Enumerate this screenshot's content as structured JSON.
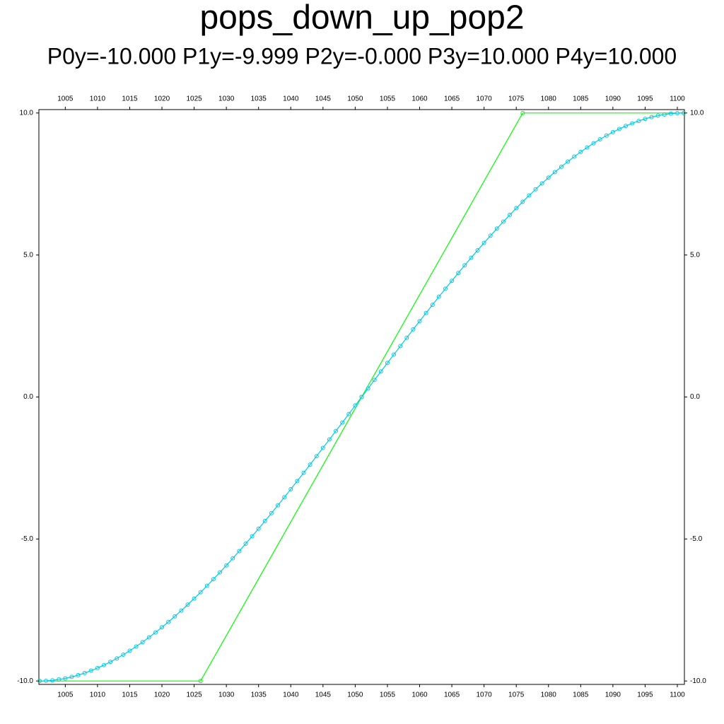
{
  "chart_data": {
    "type": "line",
    "title": "pops_down_up_pop2",
    "subtitle": "P0y=-10.000 P1y=-9.999 P2y=-0.000 P3y=10.000 P4y=10.000",
    "xlim": [
      1000.9,
      1101.1
    ],
    "ylim": [
      -10.12,
      10.12
    ],
    "xticks": [
      1005,
      1010,
      1015,
      1020,
      1025,
      1030,
      1035,
      1040,
      1045,
      1050,
      1055,
      1060,
      1065,
      1070,
      1075,
      1080,
      1085,
      1090,
      1095,
      1100
    ],
    "yticks": [
      {
        "value": -10,
        "label": "-10.0"
      },
      {
        "value": -5,
        "label": "-5.0"
      },
      {
        "value": 0,
        "label": "0.0"
      },
      {
        "value": 5,
        "label": "5.0"
      },
      {
        "value": 10,
        "label": "10.0"
      }
    ],
    "series": [
      {
        "color": "#00ff00",
        "x": [
          1001,
          1026,
          1051,
          1076,
          1101
        ],
        "values": [
          -10,
          -10,
          0,
          10,
          10
        ]
      },
      {
        "color": "#00c8e6",
        "x": [
          1001,
          1002,
          1003,
          1004,
          1005,
          1006,
          1007,
          1008,
          1009,
          1010,
          1011,
          1012,
          1013,
          1014,
          1015,
          1016,
          1017,
          1018,
          1019,
          1020,
          1021,
          1022,
          1023,
          1024,
          1025,
          1026,
          1027,
          1028,
          1029,
          1030,
          1031,
          1032,
          1033,
          1034,
          1035,
          1036,
          1037,
          1038,
          1039,
          1040,
          1041,
          1042,
          1043,
          1044,
          1045,
          1046,
          1047,
          1048,
          1049,
          1050,
          1051,
          1052,
          1053,
          1054,
          1055,
          1056,
          1057,
          1058,
          1059,
          1060,
          1061,
          1062,
          1063,
          1064,
          1065,
          1066,
          1067,
          1068,
          1069,
          1070,
          1071,
          1072,
          1073,
          1074,
          1075,
          1076,
          1077,
          1078,
          1079,
          1080,
          1081,
          1082,
          1083,
          1084,
          1085,
          1086,
          1087,
          1088,
          1089,
          1090,
          1091,
          1092,
          1093,
          1094,
          1095,
          1096,
          1097,
          1098,
          1099,
          1100,
          1101
        ],
        "values": [
          -10,
          -9.994,
          -9.976,
          -9.947,
          -9.907,
          -9.855,
          -9.793,
          -9.72,
          -9.636,
          -9.543,
          -9.44,
          -9.327,
          -9.205,
          -9.074,
          -8.934,
          -8.785,
          -8.628,
          -8.463,
          -8.289,
          -8.108,
          -7.92,
          -7.724,
          -7.522,
          -7.313,
          -7.097,
          -6.875,
          -6.647,
          -6.413,
          -6.174,
          -5.93,
          -5.68,
          -5.426,
          -5.167,
          -4.903,
          -4.636,
          -4.365,
          -4.09,
          -3.812,
          -3.531,
          -3.247,
          -2.96,
          -2.671,
          -2.38,
          -2.086,
          -1.791,
          -1.495,
          -1.197,
          -0.899,
          -0.6,
          -0.3,
          0,
          0.3,
          0.6,
          0.899,
          1.197,
          1.495,
          1.791,
          2.086,
          2.38,
          2.671,
          2.96,
          3.247,
          3.531,
          3.812,
          4.09,
          4.365,
          4.636,
          4.903,
          5.167,
          5.426,
          5.68,
          5.93,
          6.174,
          6.413,
          6.647,
          6.875,
          7.097,
          7.313,
          7.522,
          7.724,
          7.92,
          8.108,
          8.289,
          8.463,
          8.628,
          8.785,
          8.934,
          9.074,
          9.205,
          9.327,
          9.44,
          9.543,
          9.636,
          9.72,
          9.793,
          9.855,
          9.907,
          9.947,
          9.976,
          9.994,
          10
        ]
      }
    ]
  }
}
